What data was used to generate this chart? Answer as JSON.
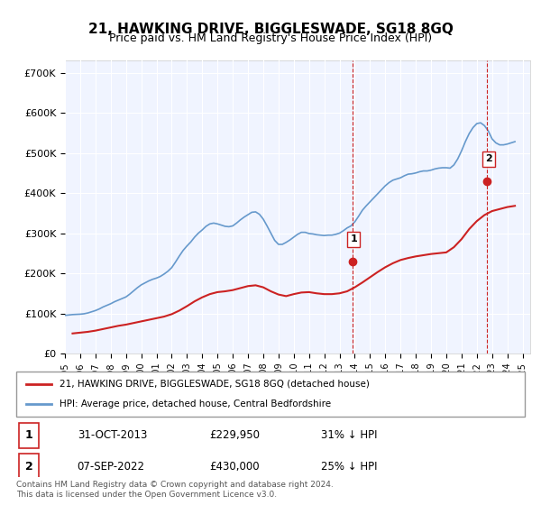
{
  "title": "21, HAWKING DRIVE, BIGGLESWADE, SG18 8GQ",
  "subtitle": "Price paid vs. HM Land Registry's House Price Index (HPI)",
  "title_fontsize": 11,
  "subtitle_fontsize": 9,
  "ylabel_ticks": [
    "£0",
    "£100K",
    "£200K",
    "£300K",
    "£400K",
    "£500K",
    "£600K",
    "£700K"
  ],
  "ytick_vals": [
    0,
    100000,
    200000,
    300000,
    400000,
    500000,
    600000,
    700000
  ],
  "ylim": [
    0,
    730000
  ],
  "xlim_start": 1995.0,
  "xlim_end": 2025.5,
  "background_color": "#ffffff",
  "plot_bg_color": "#f0f4ff",
  "grid_color": "#ffffff",
  "hpi_color": "#6699cc",
  "house_color": "#cc2222",
  "dashed_line_color": "#cc2222",
  "sale1_x": 2013.83,
  "sale1_y": 229950,
  "sale1_label": "1",
  "sale2_x": 2022.68,
  "sale2_y": 430000,
  "sale2_label": "2",
  "legend_house": "21, HAWKING DRIVE, BIGGLESWADE, SG18 8GQ (detached house)",
  "legend_hpi": "HPI: Average price, detached house, Central Bedfordshire",
  "table_row1": [
    "1",
    "31-OCT-2013",
    "£229,950",
    "31% ↓ HPI"
  ],
  "table_row2": [
    "2",
    "07-SEP-2022",
    "£430,000",
    "25% ↓ HPI"
  ],
  "footer": "Contains HM Land Registry data © Crown copyright and database right 2024.\nThis data is licensed under the Open Government Licence v3.0.",
  "hpi_data_x": [
    1995.0,
    1995.25,
    1995.5,
    1995.75,
    1996.0,
    1996.25,
    1996.5,
    1996.75,
    1997.0,
    1997.25,
    1997.5,
    1997.75,
    1998.0,
    1998.25,
    1998.5,
    1998.75,
    1999.0,
    1999.25,
    1999.5,
    1999.75,
    2000.0,
    2000.25,
    2000.5,
    2000.75,
    2001.0,
    2001.25,
    2001.5,
    2001.75,
    2002.0,
    2002.25,
    2002.5,
    2002.75,
    2003.0,
    2003.25,
    2003.5,
    2003.75,
    2004.0,
    2004.25,
    2004.5,
    2004.75,
    2005.0,
    2005.25,
    2005.5,
    2005.75,
    2006.0,
    2006.25,
    2006.5,
    2006.75,
    2007.0,
    2007.25,
    2007.5,
    2007.75,
    2008.0,
    2008.25,
    2008.5,
    2008.75,
    2009.0,
    2009.25,
    2009.5,
    2009.75,
    2010.0,
    2010.25,
    2010.5,
    2010.75,
    2011.0,
    2011.25,
    2011.5,
    2011.75,
    2012.0,
    2012.25,
    2012.5,
    2012.75,
    2013.0,
    2013.25,
    2013.5,
    2013.75,
    2014.0,
    2014.25,
    2014.5,
    2014.75,
    2015.0,
    2015.25,
    2015.5,
    2015.75,
    2016.0,
    2016.25,
    2016.5,
    2016.75,
    2017.0,
    2017.25,
    2017.5,
    2017.75,
    2018.0,
    2018.25,
    2018.5,
    2018.75,
    2019.0,
    2019.25,
    2019.5,
    2019.75,
    2020.0,
    2020.25,
    2020.5,
    2020.75,
    2021.0,
    2021.25,
    2021.5,
    2021.75,
    2022.0,
    2022.25,
    2022.5,
    2022.75,
    2023.0,
    2023.25,
    2023.5,
    2023.75,
    2024.0,
    2024.25,
    2024.5
  ],
  "hpi_data_y": [
    95000,
    96000,
    97000,
    97500,
    98000,
    99000,
    101000,
    104000,
    107000,
    111000,
    116000,
    120000,
    124000,
    129000,
    133000,
    137000,
    141000,
    148000,
    156000,
    164000,
    171000,
    176000,
    181000,
    185000,
    188000,
    192000,
    198000,
    205000,
    214000,
    228000,
    243000,
    257000,
    268000,
    278000,
    290000,
    300000,
    308000,
    317000,
    323000,
    325000,
    323000,
    320000,
    317000,
    316000,
    318000,
    325000,
    333000,
    340000,
    346000,
    352000,
    353000,
    347000,
    335000,
    318000,
    300000,
    282000,
    272000,
    272000,
    277000,
    283000,
    290000,
    297000,
    302000,
    302000,
    299000,
    298000,
    296000,
    295000,
    294000,
    295000,
    295000,
    297000,
    300000,
    306000,
    313000,
    318000,
    328000,
    342000,
    357000,
    368000,
    378000,
    388000,
    398000,
    408000,
    418000,
    426000,
    432000,
    435000,
    438000,
    443000,
    447000,
    448000,
    450000,
    453000,
    455000,
    455000,
    457000,
    460000,
    462000,
    463000,
    463000,
    462000,
    470000,
    485000,
    505000,
    528000,
    548000,
    563000,
    573000,
    575000,
    568000,
    555000,
    535000,
    525000,
    520000,
    520000,
    522000,
    525000,
    528000
  ],
  "house_data_x": [
    1995.5,
    1996.0,
    1996.5,
    1997.0,
    1997.5,
    1998.0,
    1998.5,
    1999.0,
    1999.5,
    2000.0,
    2000.5,
    2001.0,
    2001.5,
    2002.0,
    2002.5,
    2003.0,
    2003.5,
    2004.0,
    2004.5,
    2005.0,
    2005.5,
    2006.0,
    2006.5,
    2007.0,
    2007.5,
    2008.0,
    2008.5,
    2009.0,
    2009.5,
    2010.0,
    2010.5,
    2011.0,
    2011.5,
    2012.0,
    2012.5,
    2013.0,
    2013.5,
    2014.0,
    2014.5,
    2015.0,
    2015.5,
    2016.0,
    2016.5,
    2017.0,
    2017.5,
    2018.0,
    2018.5,
    2019.0,
    2019.5,
    2020.0,
    2020.5,
    2021.0,
    2021.5,
    2022.0,
    2022.5,
    2023.0,
    2023.5,
    2024.0,
    2024.5
  ],
  "house_data_y": [
    50000,
    52000,
    54000,
    57000,
    61000,
    65000,
    69000,
    72000,
    76000,
    80000,
    84000,
    88000,
    92000,
    98000,
    107000,
    118000,
    130000,
    140000,
    148000,
    153000,
    155000,
    158000,
    163000,
    168000,
    170000,
    165000,
    155000,
    147000,
    143000,
    148000,
    152000,
    153000,
    150000,
    148000,
    148000,
    150000,
    155000,
    165000,
    177000,
    190000,
    203000,
    215000,
    225000,
    233000,
    238000,
    242000,
    245000,
    248000,
    250000,
    252000,
    265000,
    285000,
    310000,
    330000,
    345000,
    355000,
    360000,
    365000,
    368000
  ]
}
